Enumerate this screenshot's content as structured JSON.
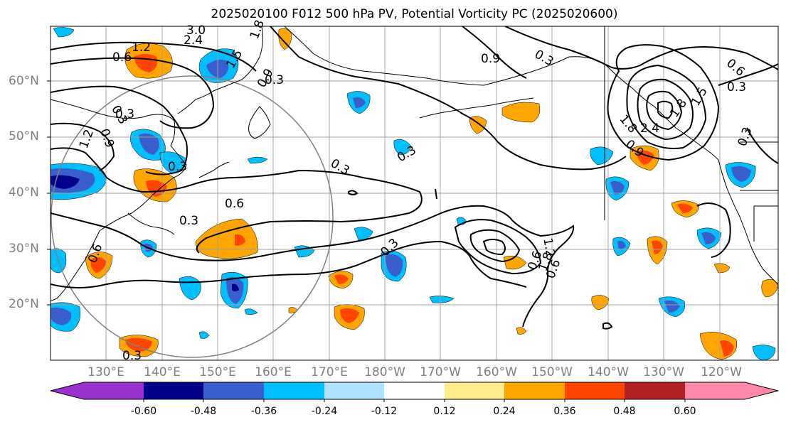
{
  "title": "2025020100 F012 500 hPa PV, Potential Vorticity PC (2025020600)",
  "lat_labels": [
    "60°N",
    "50°N",
    "40°N",
    "30°N",
    "20°N"
  ],
  "lon_labels": [
    "130°E",
    "140°E",
    "150°E",
    "160°E",
    "170°E",
    "180°W",
    "170°W",
    "160°W",
    "150°W",
    "140°W",
    "130°W",
    "120°W"
  ],
  "colorbar": {
    "colors": [
      "#9932cc",
      "#00008b",
      "#3a5fcd",
      "#00bfff",
      "#b0e2ff",
      "#ffffff",
      "#ffec8b",
      "#ffa500",
      "#ff4500",
      "#b22222",
      "#ff88aa"
    ],
    "labels": [
      "-0.60",
      "-0.48",
      "-0.36",
      "-0.24",
      "-0.12",
      "0.12",
      "0.24",
      "0.36",
      "0.48",
      "0.60"
    ]
  },
  "contour_labels": [
    "3.0",
    "2.4",
    "1.2",
    "0.6",
    "1.8",
    "1.5",
    "0.9",
    "0.3",
    "0.6",
    "0.3",
    "0.3",
    "0.3",
    "1.2",
    "0.9",
    "0.3",
    "0.6",
    "0.3",
    "0.3",
    "0.9",
    "0.3",
    "0.3",
    "0.6",
    "1.5",
    "1.8",
    "2.4",
    "0.9",
    "1.8",
    "0.3",
    "0.6",
    "1.8",
    "1.2",
    "0.6",
    "0.3",
    "0.3"
  ],
  "map": {
    "projection": "Mercator",
    "region": "North Pacific",
    "lat_range": [
      "10°N",
      "70°N"
    ],
    "lon_range": [
      "120°E",
      "110°W"
    ],
    "shading_variable": "Potential Vorticity PC",
    "contour_variable": "500 hPa PV"
  }
}
